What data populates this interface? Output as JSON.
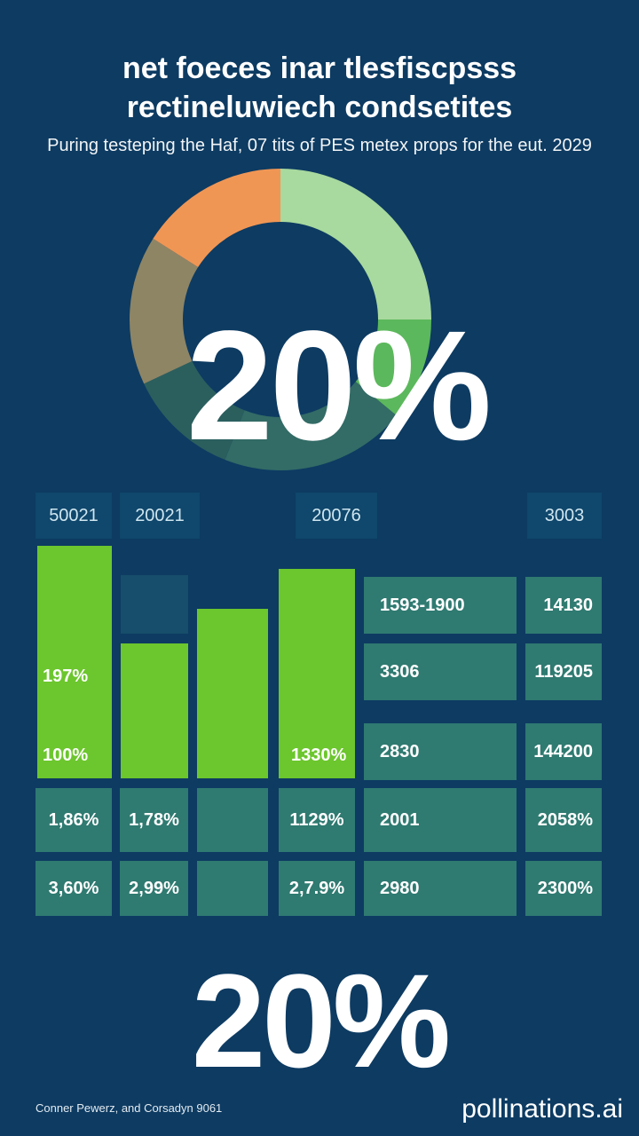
{
  "title_line1": "net foeces inar tlesfiscpsss",
  "title_line2": "rectineluwiech condsetites",
  "subtitle": "Puring testeping the Haf, 07 tits of PES metex props for the eut. 2029",
  "colors": {
    "background": "#0d3b62",
    "bar": "#6cc62d",
    "cell": "#2f7a71",
    "cell_dark": "#174e6b"
  },
  "chart_data": [
    {
      "type": "pie",
      "donut": true,
      "center_label": "20%",
      "slices": [
        {
          "value": 25,
          "color": "#a8d99e"
        },
        {
          "value": 11,
          "color": "#5cb85c"
        },
        {
          "value": 20,
          "color": "#336b66"
        },
        {
          "value": 12,
          "color": "#2b5f5e"
        },
        {
          "value": 16,
          "color": "#8e8565"
        },
        {
          "value": 16,
          "color": "#f09654"
        }
      ]
    },
    {
      "type": "bar",
      "categories": [
        "50021",
        "20021",
        "",
        "20076"
      ],
      "values": [
        100,
        58,
        73,
        90
      ],
      "ylim": [
        0,
        100
      ]
    },
    {
      "type": "table",
      "headers": [
        "50021",
        "20021",
        "20076",
        "3003"
      ],
      "rows": [
        [
          "",
          "",
          "",
          "",
          "1593-1900",
          "14130"
        ],
        [
          "197%",
          "",
          "",
          "",
          "3306",
          "119205"
        ],
        [
          "100%",
          "",
          "",
          "1330%",
          "2830",
          "144200"
        ],
        [
          "1,86%",
          "1,78%",
          "",
          "1129%",
          "2001",
          "2058%"
        ],
        [
          "3,60%",
          "2,99%",
          "",
          "2,7.9%",
          "2980",
          "2300%"
        ]
      ]
    }
  ],
  "big_stat_bottom": "20%",
  "footer_credit": "Conner Pewerz, and Corsadyn 9061",
  "watermark": "pollinations.ai"
}
